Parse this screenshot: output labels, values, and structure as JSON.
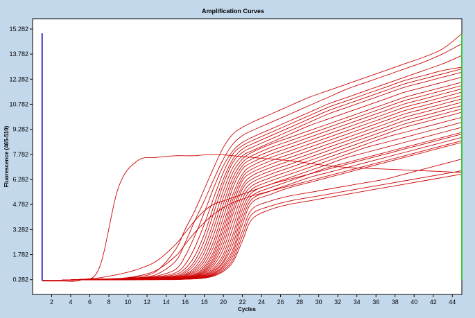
{
  "chart_data": {
    "type": "line",
    "title": "Amplification Curves",
    "xlabel": "Cycles",
    "ylabel": "Fluorescence (465-510)",
    "xlim": [
      0,
      45
    ],
    "ylim": [
      -0.6,
      15.9
    ],
    "x_ticks": [
      2,
      4,
      6,
      8,
      10,
      12,
      14,
      16,
      18,
      20,
      22,
      24,
      26,
      28,
      30,
      32,
      34,
      36,
      38,
      40,
      42,
      44
    ],
    "y_ticks": [
      0.282,
      1.782,
      3.282,
      4.782,
      6.282,
      7.782,
      9.282,
      10.782,
      12.282,
      13.782,
      15.282
    ],
    "y_tick_labels": [
      "0.282",
      "1.782",
      "3.282",
      "4.782",
      "6.282",
      "7.782",
      "9.282",
      "10.782",
      "12.282",
      "13.782",
      "15.282"
    ],
    "grid": false,
    "legend": "none",
    "line_color": "#cc0000",
    "left_marker": {
      "x": 1,
      "color": "#3333cc"
    },
    "right_marker": {
      "x": 45,
      "color": "#33cc33"
    },
    "x": [
      1,
      3,
      5,
      7,
      9,
      11,
      13,
      15,
      16,
      17,
      18,
      19,
      20,
      21,
      22,
      23,
      25,
      27,
      29,
      31,
      33,
      35,
      37,
      39,
      41,
      43,
      45
    ],
    "series": [
      {
        "values": [
          0.2,
          0.2,
          0.25,
          1.0,
          5.8,
          7.4,
          7.6,
          7.7,
          7.7,
          7.7,
          7.75,
          7.75,
          7.75,
          7.7,
          7.65,
          7.6,
          7.5,
          7.4,
          7.25,
          7.1,
          7.0,
          6.95,
          6.9,
          6.85,
          6.8,
          6.75,
          6.7
        ]
      },
      {
        "values": [
          0.25,
          0.25,
          0.3,
          0.32,
          0.35,
          0.45,
          0.8,
          2.1,
          3.3,
          4.4,
          5.7,
          7.0,
          8.2,
          9.0,
          9.4,
          9.7,
          10.2,
          10.7,
          11.2,
          11.6,
          12.0,
          12.4,
          12.8,
          13.2,
          13.6,
          14.1,
          15.0
        ]
      },
      {
        "values": [
          0.25,
          0.25,
          0.3,
          0.32,
          0.35,
          0.4,
          0.6,
          1.4,
          2.5,
          3.8,
          5.0,
          6.3,
          7.5,
          8.4,
          8.9,
          9.2,
          9.7,
          10.2,
          10.7,
          11.2,
          11.7,
          12.1,
          12.5,
          12.9,
          13.3,
          13.8,
          14.4
        ]
      },
      {
        "values": [
          0.25,
          0.25,
          0.3,
          0.32,
          0.35,
          0.4,
          0.5,
          0.9,
          1.7,
          2.9,
          4.3,
          5.8,
          7.1,
          8.0,
          8.5,
          8.8,
          9.3,
          9.8,
          10.3,
          10.8,
          11.2,
          11.6,
          12.0,
          12.4,
          12.8,
          13.2,
          13.7
        ]
      },
      {
        "values": [
          0.25,
          0.25,
          0.3,
          0.32,
          0.33,
          0.38,
          0.45,
          0.7,
          1.2,
          2.2,
          3.6,
          5.2,
          6.7,
          7.8,
          8.3,
          8.6,
          9.1,
          9.6,
          10.1,
          10.6,
          11.0,
          11.4,
          11.8,
          12.2,
          12.5,
          12.8,
          13.0
        ]
      },
      {
        "values": [
          0.25,
          0.25,
          0.3,
          0.32,
          0.33,
          0.37,
          0.42,
          0.6,
          0.95,
          1.7,
          3.0,
          4.7,
          6.3,
          7.5,
          8.1,
          8.4,
          8.9,
          9.4,
          9.9,
          10.4,
          10.8,
          11.2,
          11.6,
          12.0,
          12.3,
          12.6,
          12.9
        ]
      },
      {
        "values": [
          0.25,
          0.25,
          0.3,
          0.31,
          0.33,
          0.36,
          0.4,
          0.52,
          0.8,
          1.4,
          2.6,
          4.3,
          6.0,
          7.3,
          7.9,
          8.2,
          8.7,
          9.2,
          9.7,
          10.2,
          10.6,
          11.0,
          11.4,
          11.8,
          12.1,
          12.4,
          12.7
        ]
      },
      {
        "values": [
          0.25,
          0.25,
          0.3,
          0.31,
          0.32,
          0.35,
          0.38,
          0.48,
          0.7,
          1.2,
          2.2,
          3.8,
          5.6,
          7.0,
          7.7,
          8.0,
          8.5,
          9.0,
          9.5,
          9.9,
          10.3,
          10.7,
          11.1,
          11.5,
          11.8,
          12.1,
          12.4
        ]
      },
      {
        "values": [
          0.25,
          0.25,
          0.3,
          0.31,
          0.32,
          0.35,
          0.37,
          0.45,
          0.62,
          1.0,
          1.9,
          3.4,
          5.2,
          6.7,
          7.5,
          7.9,
          8.4,
          8.8,
          9.2,
          9.6,
          10.0,
          10.4,
          10.8,
          11.2,
          11.5,
          11.8,
          12.1
        ]
      },
      {
        "values": [
          0.25,
          0.25,
          0.29,
          0.3,
          0.32,
          0.34,
          0.36,
          0.42,
          0.56,
          0.88,
          1.6,
          3.0,
          4.8,
          6.4,
          7.3,
          7.7,
          8.2,
          8.6,
          9.0,
          9.4,
          9.8,
          10.2,
          10.6,
          11.0,
          11.3,
          11.6,
          11.9
        ]
      },
      {
        "values": [
          0.25,
          0.25,
          0.29,
          0.3,
          0.31,
          0.33,
          0.35,
          0.4,
          0.52,
          0.78,
          1.4,
          2.6,
          4.4,
          6.1,
          7.1,
          7.5,
          8.0,
          8.4,
          8.8,
          9.2,
          9.6,
          10.0,
          10.4,
          10.8,
          11.1,
          11.4,
          11.7
        ]
      },
      {
        "values": [
          0.25,
          0.25,
          0.29,
          0.3,
          0.31,
          0.33,
          0.35,
          0.39,
          0.48,
          0.7,
          1.2,
          2.3,
          4.0,
          5.8,
          6.9,
          7.3,
          7.8,
          8.2,
          8.6,
          9.0,
          9.4,
          9.8,
          10.2,
          10.6,
          10.9,
          11.2,
          11.5
        ]
      },
      {
        "values": [
          0.25,
          0.25,
          0.29,
          0.3,
          0.31,
          0.33,
          0.34,
          0.38,
          0.45,
          0.62,
          1.05,
          2.0,
          3.6,
          5.4,
          6.6,
          7.1,
          7.6,
          8.0,
          8.4,
          8.8,
          9.2,
          9.6,
          10.0,
          10.4,
          10.7,
          11.0,
          11.3
        ]
      },
      {
        "values": [
          0.25,
          0.25,
          0.29,
          0.3,
          0.31,
          0.32,
          0.34,
          0.37,
          0.43,
          0.58,
          0.95,
          1.8,
          3.3,
          5.1,
          6.4,
          6.9,
          7.4,
          7.8,
          8.2,
          8.6,
          9.0,
          9.4,
          9.8,
          10.2,
          10.5,
          10.8,
          11.1
        ]
      },
      {
        "values": [
          0.25,
          0.25,
          0.29,
          0.3,
          0.3,
          0.32,
          0.33,
          0.36,
          0.41,
          0.54,
          0.85,
          1.6,
          3.0,
          4.8,
          6.2,
          6.7,
          7.2,
          7.6,
          8.0,
          8.4,
          8.8,
          9.2,
          9.6,
          10.0,
          10.3,
          10.6,
          10.9
        ]
      },
      {
        "values": [
          0.25,
          0.25,
          0.28,
          0.29,
          0.3,
          0.32,
          0.33,
          0.35,
          0.4,
          0.5,
          0.78,
          1.45,
          2.7,
          4.5,
          5.9,
          6.5,
          7.0,
          7.4,
          7.8,
          8.2,
          8.6,
          9.0,
          9.4,
          9.8,
          10.1,
          10.4,
          10.7
        ]
      },
      {
        "values": [
          0.25,
          0.25,
          0.28,
          0.29,
          0.3,
          0.31,
          0.32,
          0.35,
          0.39,
          0.48,
          0.72,
          1.3,
          2.4,
          4.2,
          5.7,
          6.3,
          6.8,
          7.2,
          7.6,
          8.0,
          8.4,
          8.8,
          9.2,
          9.6,
          9.9,
          10.2,
          10.5
        ]
      },
      {
        "values": [
          0.25,
          0.25,
          0.28,
          0.29,
          0.3,
          0.31,
          0.32,
          0.34,
          0.38,
          0.46,
          0.66,
          1.15,
          2.1,
          3.8,
          5.4,
          6.1,
          6.6,
          7.0,
          7.4,
          7.8,
          8.2,
          8.6,
          9.0,
          9.4,
          9.7,
          10.0,
          10.3
        ]
      },
      {
        "values": [
          0.25,
          0.25,
          0.28,
          0.29,
          0.29,
          0.3,
          0.31,
          0.33,
          0.37,
          0.44,
          0.6,
          1.0,
          1.8,
          3.4,
          5.1,
          5.9,
          6.4,
          6.8,
          7.2,
          7.6,
          8.0,
          8.4,
          8.8,
          9.1,
          9.4,
          9.7,
          10.0
        ]
      },
      {
        "values": [
          0.25,
          0.25,
          0.28,
          0.28,
          0.29,
          0.3,
          0.31,
          0.33,
          0.36,
          0.42,
          0.56,
          0.9,
          1.6,
          3.0,
          4.8,
          5.7,
          6.2,
          6.6,
          7.0,
          7.4,
          7.8,
          8.2,
          8.5,
          8.8,
          9.1,
          9.4,
          9.7
        ]
      },
      {
        "values": [
          0.25,
          0.25,
          0.28,
          0.28,
          0.29,
          0.3,
          0.3,
          0.32,
          0.35,
          0.4,
          0.52,
          0.82,
          1.4,
          2.7,
          4.5,
          5.5,
          6.0,
          6.4,
          6.8,
          7.2,
          7.6,
          7.9,
          8.2,
          8.5,
          8.8,
          9.1,
          9.4
        ]
      },
      {
        "values": [
          0.25,
          0.25,
          0.28,
          0.28,
          0.29,
          0.29,
          0.3,
          0.32,
          0.34,
          0.39,
          0.5,
          0.75,
          1.3,
          2.4,
          4.2,
          5.3,
          5.8,
          6.2,
          6.6,
          7.0,
          7.3,
          7.6,
          7.9,
          8.2,
          8.5,
          8.8,
          9.1
        ]
      },
      {
        "values": [
          0.25,
          0.25,
          0.27,
          0.28,
          0.28,
          0.29,
          0.3,
          0.31,
          0.33,
          0.37,
          0.46,
          0.68,
          1.15,
          2.1,
          3.9,
          5.1,
          5.6,
          6.0,
          6.4,
          6.7,
          7.0,
          7.3,
          7.6,
          7.9,
          8.2,
          8.5,
          8.8
        ]
      },
      {
        "values": [
          0.25,
          0.25,
          0.27,
          0.28,
          0.28,
          0.29,
          0.29,
          0.31,
          0.33,
          0.36,
          0.44,
          0.63,
          1.05,
          1.9,
          3.6,
          4.9,
          5.4,
          5.8,
          6.1,
          6.4,
          6.7,
          7.0,
          7.3,
          7.6,
          7.9,
          8.2,
          8.5
        ]
      },
      {
        "values": [
          0.25,
          0.25,
          0.3,
          0.4,
          0.6,
          0.9,
          1.4,
          2.4,
          3.1,
          3.8,
          4.4,
          4.8,
          5.0,
          5.2,
          5.4,
          5.6,
          6.0,
          6.3,
          6.6,
          6.9,
          7.2,
          7.5,
          7.8,
          8.1,
          8.4,
          8.7,
          9.0
        ]
      },
      {
        "values": [
          0.25,
          0.25,
          0.28,
          0.3,
          0.35,
          0.5,
          0.85,
          1.7,
          2.4,
          3.1,
          3.7,
          4.2,
          4.6,
          4.9,
          5.1,
          5.3,
          5.6,
          5.9,
          6.2,
          6.5,
          6.8,
          7.1,
          7.4,
          7.7,
          8.0,
          8.3,
          8.6
        ]
      },
      {
        "values": [
          0.25,
          0.25,
          0.27,
          0.28,
          0.28,
          0.29,
          0.29,
          0.3,
          0.32,
          0.35,
          0.42,
          0.58,
          0.95,
          1.7,
          3.2,
          4.5,
          5.0,
          5.3,
          5.5,
          5.7,
          5.9,
          6.1,
          6.3,
          6.6,
          6.9,
          7.2,
          7.5
        ]
      },
      {
        "values": [
          0.25,
          0.25,
          0.27,
          0.27,
          0.28,
          0.28,
          0.29,
          0.3,
          0.31,
          0.34,
          0.4,
          0.54,
          0.85,
          1.5,
          2.9,
          4.2,
          4.7,
          5.0,
          5.2,
          5.4,
          5.6,
          5.8,
          6.0,
          6.2,
          6.4,
          6.6,
          6.8
        ]
      },
      {
        "values": [
          0.25,
          0.25,
          0.27,
          0.27,
          0.27,
          0.28,
          0.28,
          0.29,
          0.31,
          0.33,
          0.38,
          0.5,
          0.78,
          1.35,
          2.6,
          3.9,
          4.5,
          4.8,
          5.0,
          5.2,
          5.4,
          5.6,
          5.8,
          6.0,
          6.2,
          6.4,
          6.6
        ]
      }
    ]
  }
}
